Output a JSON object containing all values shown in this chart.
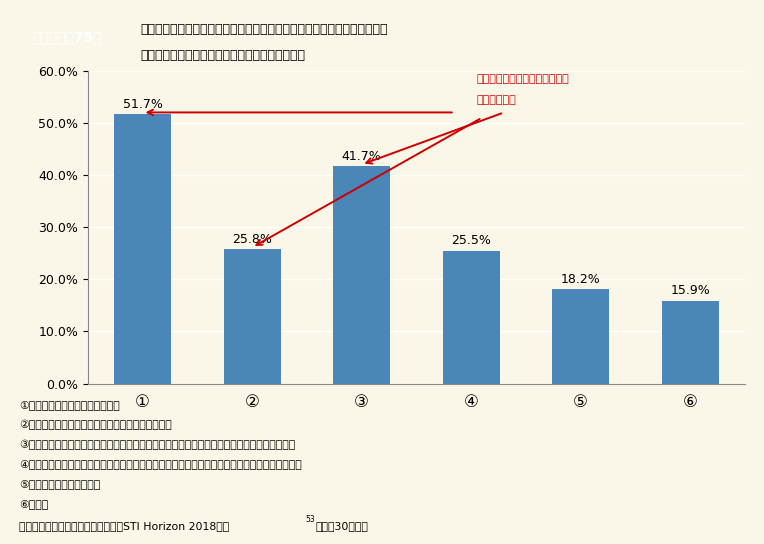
{
  "categories": [
    "①",
    "②",
    "③",
    "④",
    "⑤",
    "⑥"
  ],
  "values": [
    51.7,
    25.8,
    41.7,
    25.5,
    18.2,
    15.9
  ],
  "bar_color": "#4a86b8",
  "background_color": "#faf6e8",
  "header_bg_color": "#3a78b5",
  "header_text_color": "#ffffff",
  "title_label": "第１－１－75図",
  "title_text_line1": "海外ポスドク経験者に対する問い「日本に戺る際に弊害となると感じるこ",
  "title_text_line2": "と又は感じたことは何ですか」に対する回答結果",
  "ylim": [
    0,
    60
  ],
  "yticks": [
    0,
    10,
    20,
    30,
    40,
    50,
    60
  ],
  "annotation_line1": "戺る際のポストやその手続きに",
  "annotation_line2": "弊害を感じる",
  "annotation_color": "#cc0000",
  "footnote_lines": [
    "①戺る際のポストがないと感じる",
    "②戺る際のポストが自分の希望通りでないと感じる",
    "③手続き、タイミング等の理由により、戺る際に希望のポストにエントリーしにくいと感じる",
    "④海外の研究環境の方が良く、そもそも日本のポストを探すインセンティブが働かないと感じる",
    "⑤特に障害はないと感じる",
    "⑥その他"
  ],
  "source_main": "資料：科学技術・学術政策研究所『STI Horizon 2018夏号",
  "source_super": "53",
  "source_end": "（平成30年）』"
}
